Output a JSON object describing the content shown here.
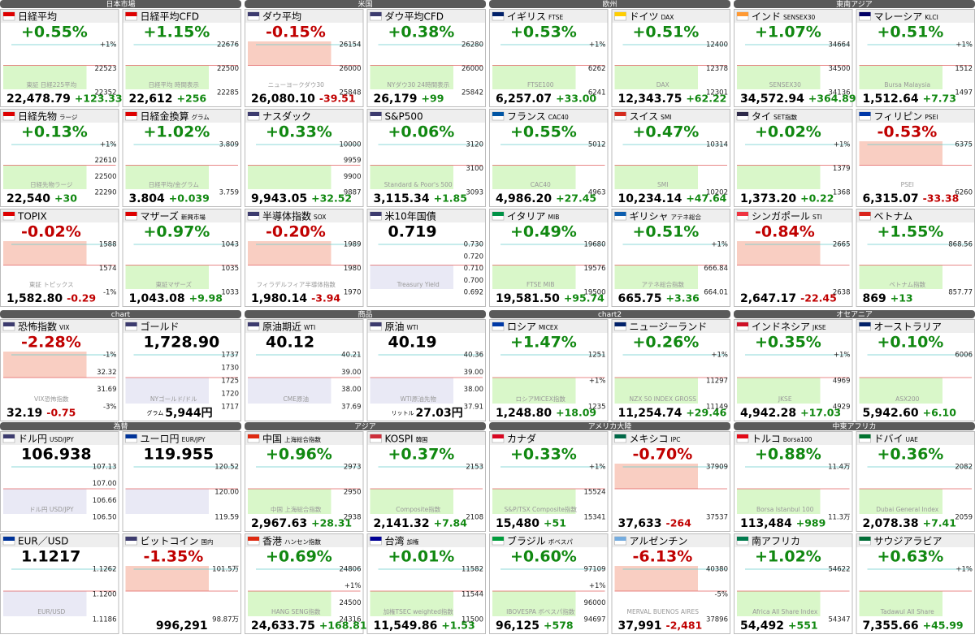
{
  "sections": [
    {
      "title": "日本市場",
      "tiles": [
        {
          "name": "日経平均",
          "flag": "#d00",
          "pct": "+0.55%",
          "price": "22,478.79",
          "chg": "+123.33",
          "axis": [
            "+1%",
            "22523",
            "22352"
          ],
          "wm": "東証 日経225平均"
        },
        {
          "name": "日経平均CFD",
          "flag": "#d00",
          "pct": "+1.15%",
          "price": "22,612",
          "chg": "+256",
          "axis": [
            "22676",
            "22500",
            "22285"
          ],
          "wm": "日経平均 時間表示"
        },
        {
          "name": "日経先物",
          "sub": "ラージ",
          "flag": "#d00",
          "pct": "+0.13%",
          "price": "22,540",
          "chg": "+30",
          "axis": [
            "+1%",
            "22610",
            "22500",
            "22290"
          ],
          "wm": "日経先物ラージ"
        },
        {
          "name": "日経金換算",
          "sub": "グラム",
          "flag": "#d00",
          "pct": "+1.02%",
          "price": "3.804",
          "chg": "+0.039",
          "axis": [
            "3.809",
            "3.759"
          ],
          "wm": "日経平均/金グラム"
        },
        {
          "name": "TOPIX",
          "flag": "#d00",
          "pct": "-0.02%",
          "price": "1,582.80",
          "chg": "-0.29",
          "axis": [
            "1588",
            "1574",
            "-1%"
          ],
          "wm": "東証 トピックス"
        },
        {
          "name": "マザーズ",
          "sub": "新興市場",
          "flag": "#d00",
          "pct": "+0.97%",
          "price": "1,043.08",
          "chg": "+9.98",
          "axis": [
            "1043",
            "1035",
            "1033"
          ],
          "wm": "東証マザーズ"
        }
      ]
    },
    {
      "title": "米国",
      "tiles": [
        {
          "name": "ダウ平均",
          "flag": "#3c3b6e",
          "pct": "-0.15%",
          "price": "26,080.10",
          "chg": "-39.51",
          "axis": [
            "26154",
            "26000",
            "25848"
          ],
          "wm": "ニューヨークダウ30"
        },
        {
          "name": "ダウ平均CFD",
          "flag": "#3c3b6e",
          "pct": "+0.38%",
          "price": "26,179",
          "chg": "+99",
          "axis": [
            "26280",
            "26000",
            "25842"
          ],
          "wm": "NYダウ30 24時間表示"
        },
        {
          "name": "ナスダック",
          "flag": "#3c3b6e",
          "pct": "+0.33%",
          "price": "9,943.05",
          "chg": "+32.52",
          "axis": [
            "10000",
            "9959",
            "9900",
            "9887"
          ]
        },
        {
          "name": "S&P500",
          "flag": "#3c3b6e",
          "pct": "+0.06%",
          "price": "3,115.34",
          "chg": "+1.85",
          "axis": [
            "3120",
            "3100",
            "3093"
          ],
          "wm": "Standard & Poor's 500"
        },
        {
          "name": "半導体指数",
          "sub": "SOX",
          "flag": "#3c3b6e",
          "pct": "-0.20%",
          "price": "1,980.14",
          "chg": "-3.94",
          "axis": [
            "1989",
            "1980",
            "1970"
          ],
          "wm": "フィラデルフィア半導体指数"
        },
        {
          "name": "米10年国債",
          "flag": "#3c3b6e",
          "value": "0.719",
          "axis": [
            "0.730",
            "0.720",
            "0.710",
            "0.700",
            "0.692"
          ],
          "wm": "Treasury Yield"
        }
      ]
    },
    {
      "title": "欧州",
      "tiles": [
        {
          "name": "イギリス",
          "sub": "FTSE",
          "flag": "#012169",
          "pct": "+0.53%",
          "price": "6,257.07",
          "chg": "+33.00",
          "axis": [
            "+1%",
            "6262",
            "6241"
          ],
          "wm": "FTSE100"
        },
        {
          "name": "ドイツ",
          "sub": "DAX",
          "flag": "#ffce00",
          "pct": "+0.51%",
          "price": "12,343.75",
          "chg": "+62.22",
          "axis": [
            "12400",
            "12378",
            "12301"
          ],
          "wm": "DAX"
        },
        {
          "name": "フランス",
          "sub": "CAC40",
          "flag": "#0055a4",
          "pct": "+0.55%",
          "price": "4,986.20",
          "chg": "+27.45",
          "axis": [
            "5012",
            "4963"
          ],
          "wm": "CAC40"
        },
        {
          "name": "スイス",
          "sub": "SMI",
          "flag": "#d52b1e",
          "pct": "+0.47%",
          "price": "10,234.14",
          "chg": "+47.64",
          "axis": [
            "10314",
            "10202"
          ],
          "wm": "SMI"
        },
        {
          "name": "イタリア",
          "sub": "MIB",
          "flag": "#009246",
          "pct": "+0.49%",
          "price": "19,581.50",
          "chg": "+95.74",
          "axis": [
            "19680",
            "19576",
            "19500"
          ],
          "wm": "FTSE MIB"
        },
        {
          "name": "ギリシャ",
          "sub": "アテネ総合",
          "flag": "#0d5eaf",
          "pct": "+0.51%",
          "price": "665.75",
          "chg": "+3.36",
          "axis": [
            "+1%",
            "666.84",
            "664.01"
          ],
          "wm": "アテネ総合指数"
        }
      ]
    },
    {
      "title": "東南アジア",
      "tiles": [
        {
          "name": "インド",
          "sub": "SENSEX30",
          "flag": "#ff9933",
          "pct": "+1.07%",
          "price": "34,572.94",
          "chg": "+364.89",
          "axis": [
            "34664",
            "34500",
            "34136"
          ],
          "wm": "SENSEX30"
        },
        {
          "name": "マレーシア",
          "sub": "KLCI",
          "flag": "#010066",
          "pct": "+0.51%",
          "price": "1,512.64",
          "chg": "+7.73",
          "axis": [
            "+1%",
            "1512",
            "1497"
          ],
          "wm": "Bursa Malaysia"
        },
        {
          "name": "タイ",
          "sub": "SET指数",
          "flag": "#2d2a4a",
          "pct": "+0.02%",
          "price": "1,373.20",
          "chg": "+0.22",
          "axis": [
            "+1%",
            "1379",
            "1368"
          ]
        },
        {
          "name": "フィリピン",
          "sub": "PSEI",
          "flag": "#0038a8",
          "pct": "-0.53%",
          "price": "6,315.07",
          "chg": "-33.38",
          "axis": [
            "6375",
            "6260"
          ],
          "wm": "PSEI"
        },
        {
          "name": "シンガポール",
          "sub": "STI",
          "flag": "#ef3340",
          "pct": "-0.84%",
          "price": "2,647.17",
          "chg": "-22.45",
          "axis": [
            "2665",
            "2638"
          ]
        },
        {
          "name": "ベトナム",
          "flag": "#da251d",
          "pct": "+1.55%",
          "price": "869",
          "chg": "+13",
          "axis": [
            "868.56",
            "857.77"
          ],
          "wm": "ベトナム指数"
        }
      ]
    },
    {
      "title": "chart",
      "tiles": [
        {
          "name": "恐怖指数",
          "sub": "VIX",
          "flag": "#3c3b6e",
          "pct": "-2.28%",
          "price": "32.19",
          "chg": "-0.75",
          "axis": [
            "-1%",
            "32.32",
            "31.69",
            "-3%"
          ],
          "wm": "VIX恐怖指数"
        },
        {
          "name": "ゴールド",
          "flag": "#3c3b6e",
          "value": "1,728.90",
          "price": "5,944円",
          "unit": "グラム",
          "axis": [
            "1737",
            "1730",
            "1725",
            "1720",
            "1717"
          ],
          "wm": "NYゴールド/ドル"
        }
      ]
    },
    {
      "title": "商品",
      "tiles": [
        {
          "name": "原油期近",
          "sub": "WTI",
          "flag": "#3c3b6e",
          "value": "40.12",
          "axis": [
            "40.21",
            "39.00",
            "38.00",
            "37.69"
          ],
          "wm": "CME原油"
        },
        {
          "name": "原油",
          "sub": "WTI",
          "flag": "#3c3b6e",
          "value": "40.19",
          "price": "27.03円",
          "unit": "リットル",
          "axis": [
            "40.36",
            "39.00",
            "38.00",
            "37.91"
          ],
          "wm": "WTI原油先物"
        }
      ]
    },
    {
      "title": "chart2",
      "tiles": [
        {
          "name": "ロシア",
          "sub": "MICEX",
          "flag": "#0039a6",
          "pct": "+1.47%",
          "price": "1,248.80",
          "chg": "+18.09",
          "axis": [
            "1251",
            "+1%",
            "1235"
          ],
          "wm": "ロシアMICEX指数"
        },
        {
          "name": "ニュージーランド",
          "flag": "#012169",
          "pct": "+0.26%",
          "price": "11,254.74",
          "chg": "+29.46",
          "axis": [
            "+1%",
            "11297",
            "11149"
          ],
          "wm": "NZX 50 INDEX GROSS"
        }
      ]
    },
    {
      "title": "オセアニア",
      "tiles": [
        {
          "name": "インドネシア",
          "sub": "JKSE",
          "flag": "#ce1126",
          "pct": "+0.35%",
          "price": "4,942.28",
          "chg": "+17.03",
          "axis": [
            "+1%",
            "4969",
            "4929"
          ],
          "wm": "JKSE"
        },
        {
          "name": "オーストラリア",
          "flag": "#012169",
          "pct": "+0.10%",
          "price": "5,942.60",
          "chg": "+6.10",
          "axis": [
            "6006"
          ],
          "wm": "ASX200"
        }
      ]
    },
    {
      "title": "為替",
      "tiles": [
        {
          "name": "ドル円",
          "sub": "USD/JPY",
          "flag": "#3c3b6e",
          "value": "106.938",
          "axis": [
            "107.13",
            "107.00",
            "106.66",
            "106.50"
          ],
          "wm": "ドル円 USD/JPY"
        },
        {
          "name": "ユーロ円",
          "sub": "EUR/JPY",
          "flag": "#003399",
          "value": "119.955",
          "axis": [
            "120.52",
            "120.00",
            "119.59"
          ]
        },
        {
          "name": "EUR／USD",
          "flag": "#003399",
          "value": "1.1217",
          "axis": [
            "1.1262",
            "1.1200",
            "1.1186"
          ],
          "wm": "EUR/USD"
        },
        {
          "name": "ビットコイン",
          "sub": "国内",
          "flag": "#3c3b6e",
          "pct": "-1.35%",
          "price": "996,291",
          "axis": [
            "101.5万",
            "98.87万"
          ]
        }
      ]
    },
    {
      "title": "アジア",
      "tiles": [
        {
          "name": "中国",
          "sub": "上海総合指数",
          "flag": "#de2910",
          "pct": "+0.96%",
          "price": "2,967.63",
          "chg": "+28.31",
          "axis": [
            "2973",
            "2950",
            "2938"
          ],
          "wm": "中国 上海総合指数"
        },
        {
          "name": "KOSPI",
          "sub": "韓国",
          "flag": "#cd2e3a",
          "pct": "+0.37%",
          "price": "2,141.32",
          "chg": "+7.84",
          "axis": [
            "2153",
            "2108"
          ],
          "wm": "Composite指数"
        },
        {
          "name": "香港",
          "sub": "ハンセン指数",
          "flag": "#de2910",
          "pct": "+0.69%",
          "price": "24,633.75",
          "chg": "+168.81",
          "axis": [
            "24806",
            "+1%",
            "24500",
            "24316"
          ],
          "wm": "HANG SENG指数"
        },
        {
          "name": "台湾",
          "sub": "加権",
          "flag": "#000095",
          "pct": "+0.01%",
          "price": "11,549.86",
          "chg": "+1.53",
          "axis": [
            "11582",
            "11544",
            "11500"
          ],
          "wm": "加権TSEC weighted指数"
        }
      ]
    },
    {
      "title": "アメリカ大陸",
      "tiles": [
        {
          "name": "カナダ",
          "flag": "#d80621",
          "pct": "+0.33%",
          "price": "15,480",
          "chg": "+51",
          "axis": [
            "+1%",
            "15524",
            "15341"
          ],
          "wm": "S&P/TSX Composite指数"
        },
        {
          "name": "メキシコ",
          "sub": "IPC",
          "flag": "#006847",
          "pct": "-0.70%",
          "price": "37,633",
          "chg": "-264",
          "axis": [
            "37909",
            "37537"
          ]
        },
        {
          "name": "ブラジル",
          "sub": "ボベスパ",
          "flag": "#009c3b",
          "pct": "+0.60%",
          "price": "96,125",
          "chg": "+578",
          "axis": [
            "97109",
            "+1%",
            "96000",
            "94697"
          ],
          "wm": "IBOVESPA ボベスパ指数"
        },
        {
          "name": "アルゼンチン",
          "flag": "#74acdf",
          "pct": "-6.13%",
          "price": "37,991",
          "chg": "-2,481",
          "axis": [
            "40380",
            "-5%",
            "37896"
          ],
          "wm": "MERVAL BUENOS AIRES"
        }
      ]
    },
    {
      "title": "中東アフリカ",
      "tiles": [
        {
          "name": "トルコ",
          "sub": "Borsa100",
          "flag": "#e30a17",
          "pct": "+0.88%",
          "price": "113,484",
          "chg": "+989",
          "axis": [
            "11.4万",
            "11.3万"
          ],
          "wm": "Borsa Istanbul 100"
        },
        {
          "name": "ドバイ",
          "sub": "UAE",
          "flag": "#00732f",
          "pct": "+0.36%",
          "price": "2,078.38",
          "chg": "+7.41",
          "axis": [
            "2082",
            "2059"
          ],
          "wm": "Dubai General Index"
        },
        {
          "name": "南アフリカ",
          "flag": "#007a4d",
          "pct": "+1.02%",
          "price": "54,492",
          "chg": "+551",
          "axis": [
            "54622",
            "54347"
          ],
          "wm": "Africa All Share Index"
        },
        {
          "name": "サウジアラビア",
          "flag": "#006c35",
          "pct": "+0.63%",
          "price": "7,355.66",
          "chg": "+45.99",
          "axis": [
            "+1%"
          ],
          "wm": "Tadawul All Share"
        }
      ]
    }
  ]
}
